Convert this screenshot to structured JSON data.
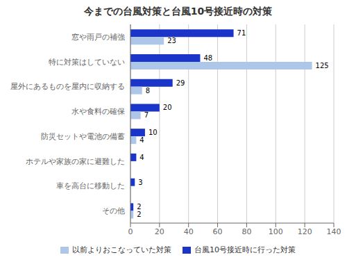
{
  "chart_data": {
    "type": "bar",
    "orientation": "horizontal",
    "title": "今までの台風対策と台風10号接近時の対策",
    "categories": [
      "窓や雨戸の補強",
      "特に対策はしていない",
      "屋外にあるものを屋内に収納する",
      "水や食料の確保",
      "防災セットや電池の備蓄",
      "ホテルや家族の家に避難した",
      "車を高台に移動した",
      "その他"
    ],
    "series": [
      {
        "name": "以前よりおこなっていた対策",
        "color": "#aec6e8",
        "values": [
          23,
          125,
          8,
          7,
          4,
          0,
          0,
          2
        ]
      },
      {
        "name": "台風10号接近時に行った対策",
        "color": "#1a35c8",
        "values": [
          71,
          48,
          29,
          20,
          10,
          4,
          3,
          2
        ]
      }
    ],
    "xlim": [
      0,
      140
    ],
    "xticks": [
      0,
      20,
      40,
      60,
      80,
      100,
      120,
      140
    ],
    "grid": "x",
    "data_labels": true,
    "legend": "bottom"
  }
}
